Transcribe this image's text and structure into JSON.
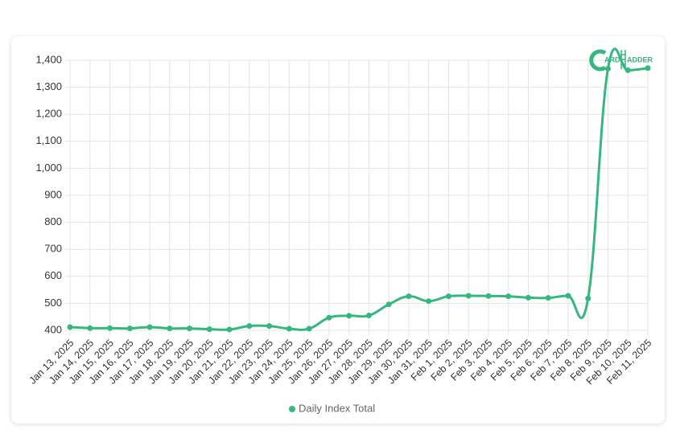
{
  "chart_data": {
    "type": "line",
    "categories": [
      "Jan 13, 2025",
      "Jan 14, 2025",
      "Jan 15, 2025",
      "Jan 16, 2025",
      "Jan 17, 2025",
      "Jan 18, 2025",
      "Jan 19, 2025",
      "Jan 20, 2025",
      "Jan 21, 2025",
      "Jan 22, 2025",
      "Jan 23, 2025",
      "Jan 24, 2025",
      "Jan 25, 2025",
      "Jan 26, 2025",
      "Jan 27, 2025",
      "Jan 28, 2025",
      "Jan 29, 2025",
      "Jan 30, 2025",
      "Jan 31, 2025",
      "Feb 1, 2025",
      "Feb 2, 2025",
      "Feb 3, 2025",
      "Feb 4, 2025",
      "Feb 5, 2025",
      "Feb 6, 2025",
      "Feb 7, 2025",
      "Feb 8, 2025",
      "Feb 9, 2025",
      "Feb 10, 2025",
      "Feb 11, 2025"
    ],
    "series": [
      {
        "name": "Daily Index Total",
        "color": "#35b87f",
        "values": [
          412,
          408,
          408,
          407,
          412,
          407,
          407,
          404,
          403,
          416,
          416,
          406,
          406,
          447,
          454,
          455,
          496,
          526,
          508,
          526,
          528,
          527,
          526,
          521,
          520,
          528,
          518,
          1369,
          1363,
          1371
        ]
      }
    ],
    "ylim": [
      400,
      1400
    ],
    "yticks": [
      400,
      500,
      600,
      700,
      800,
      900,
      {
        "value": 1000,
        "label": "1,000"
      },
      {
        "value": 1100,
        "label": "1,100"
      },
      {
        "value": 1200,
        "label": "1,200"
      },
      {
        "value": 1300,
        "label": "1,300"
      },
      {
        "value": 1400,
        "label": "1,400"
      }
    ],
    "grid": true,
    "legend": "bottom",
    "logo_text": [
      "ARD",
      "ADDER"
    ]
  }
}
